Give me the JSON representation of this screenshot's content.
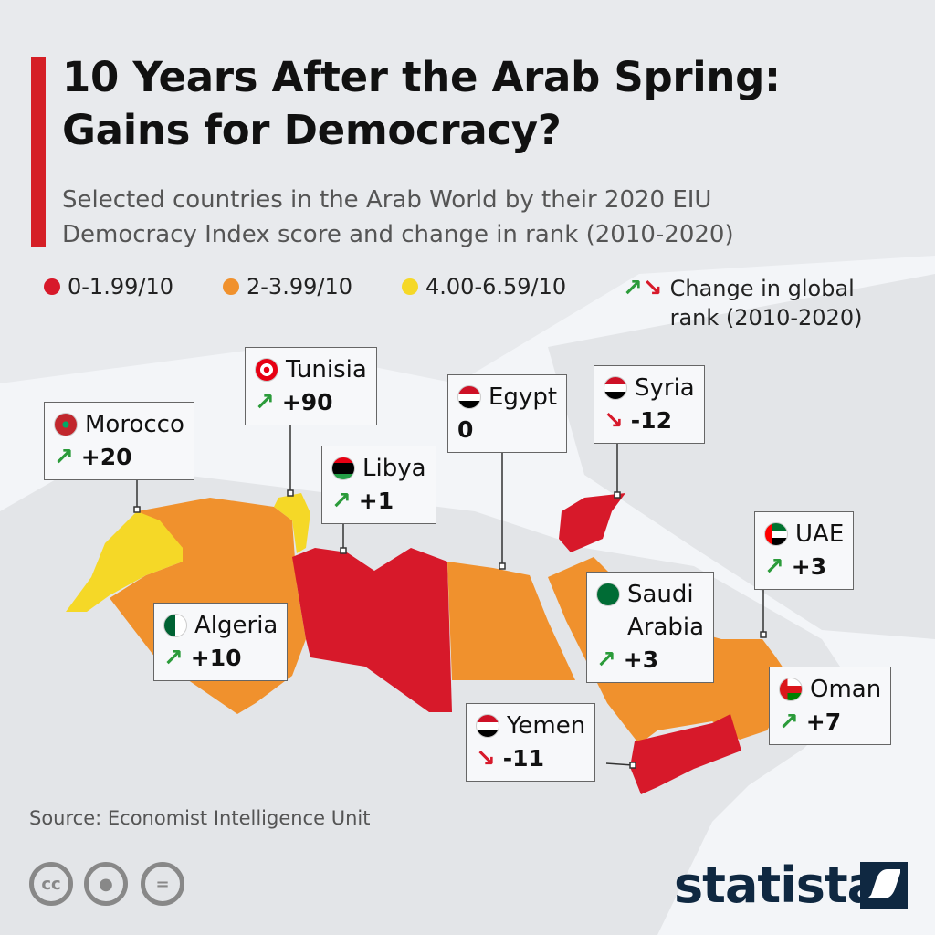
{
  "title_line1": "10 Years After the Arab Spring:",
  "title_line2": "Gains for Democracy?",
  "subtitle_line1": "Selected countries in the Arab World by their 2020 EIU",
  "subtitle_line2": "Democracy Index score and change in rank (2010-2020)",
  "legend": [
    {
      "label": "0-1.99/10",
      "color": "#d7192a"
    },
    {
      "label": "2-3.99/10",
      "color": "#f0912d"
    },
    {
      "label": "4.00-6.59/10",
      "color": "#f5d827"
    }
  ],
  "legend_arrows": {
    "line1": "Change in global",
    "line2": "rank (2010-2020)",
    "up_color": "#2b9b3a",
    "down_color": "#d7192a"
  },
  "countries": [
    {
      "name": "Morocco",
      "change": "+20",
      "direction": "up",
      "score_band": "4.00-6.59/10"
    },
    {
      "name": "Tunisia",
      "change": "+90",
      "direction": "up",
      "score_band": "4.00-6.59/10"
    },
    {
      "name": "Libya",
      "change": "+1",
      "direction": "up",
      "score_band": "0-1.99/10"
    },
    {
      "name": "Egypt",
      "change": "0",
      "direction": "none",
      "score_band": "2-3.99/10"
    },
    {
      "name": "Syria",
      "change": "-12",
      "direction": "down",
      "score_band": "0-1.99/10"
    },
    {
      "name": "UAE",
      "change": "+3",
      "direction": "up",
      "score_band": "2-3.99/10"
    },
    {
      "name": "Saudi",
      "name2": "Arabia",
      "change": "+3",
      "direction": "up",
      "score_band": "2-3.99/10"
    },
    {
      "name": "Algeria",
      "change": "+10",
      "direction": "up",
      "score_band": "2-3.99/10"
    },
    {
      "name": "Oman",
      "change": "+7",
      "direction": "up",
      "score_band": "2-3.99/10"
    },
    {
      "name": "Yemen",
      "change": "-11",
      "direction": "down",
      "score_band": "0-1.99/10"
    }
  ],
  "source": "Source: Economist Intelligence Unit",
  "license_icons": [
    "cc-icon",
    "attribution-icon",
    "no-derivatives-icon"
  ],
  "brand": "statista"
}
